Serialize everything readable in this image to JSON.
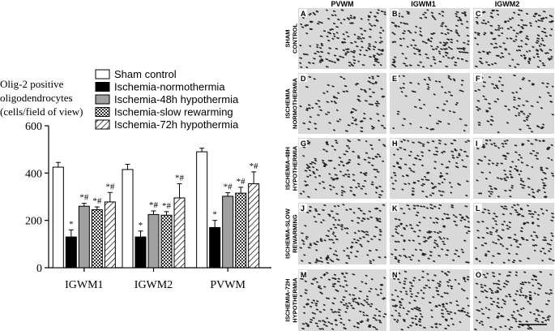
{
  "chart_data": {
    "type": "bar",
    "ylabel": [
      "Olig-2 positive",
      "oligodendrocytes",
      "(cells/field of view)"
    ],
    "categories": [
      "IGWM1",
      "IGWM2",
      "PVWM"
    ],
    "ylim": [
      0,
      600
    ],
    "yticks": [
      0,
      200,
      400,
      600
    ],
    "series": [
      {
        "name": "Sham control",
        "color": "#ffffff",
        "values": [
          425,
          415,
          490
        ],
        "errors": [
          20,
          22,
          15
        ],
        "marks": [
          null,
          null,
          null
        ]
      },
      {
        "name": "Ischemia-normothermia",
        "color": "#000000",
        "values": [
          130,
          130,
          170
        ],
        "errors": [
          30,
          25,
          30
        ],
        "marks": [
          "*",
          "*",
          "*"
        ]
      },
      {
        "name": "Ischemia-48h hypothermia",
        "color": "#a0a0a0",
        "values": [
          260,
          225,
          302
        ],
        "errors": [
          12,
          15,
          15
        ],
        "marks": [
          "*#",
          "*#",
          "*#"
        ]
      },
      {
        "name": "Ischemia-slow rewarming",
        "color": "#555555",
        "values": [
          245,
          222,
          315
        ],
        "errors": [
          12,
          15,
          25
        ],
        "marks": [
          "*#",
          "*#",
          "*#"
        ]
      },
      {
        "name": "Ischemia-72h hypothermia",
        "color": "#ffffff",
        "values": [
          278,
          295,
          355
        ],
        "errors": [
          40,
          60,
          50
        ],
        "marks": [
          "*#",
          "*#",
          "*#"
        ]
      }
    ]
  },
  "micrographs": {
    "columns": [
      "PVWM",
      "IGWM1",
      "IGWM2"
    ],
    "rows": [
      [
        "SHAM",
        "CONTROL"
      ],
      [
        "ISCHEMIA",
        "NORMOTHERMIA"
      ],
      [
        "ISCHEMIA-48H",
        "HYPOTHERMIA"
      ],
      [
        "ISCHEMIA-SLOW",
        "REWARMING"
      ],
      [
        "ISCHEMIA-72H",
        "HYPOTHERMIA"
      ]
    ],
    "panels": [
      [
        "A",
        "B",
        "C"
      ],
      [
        "D",
        "E",
        "F"
      ],
      [
        "G",
        "H",
        "I"
      ],
      [
        "J",
        "K",
        "L"
      ],
      [
        "M",
        "N",
        "O"
      ]
    ]
  }
}
